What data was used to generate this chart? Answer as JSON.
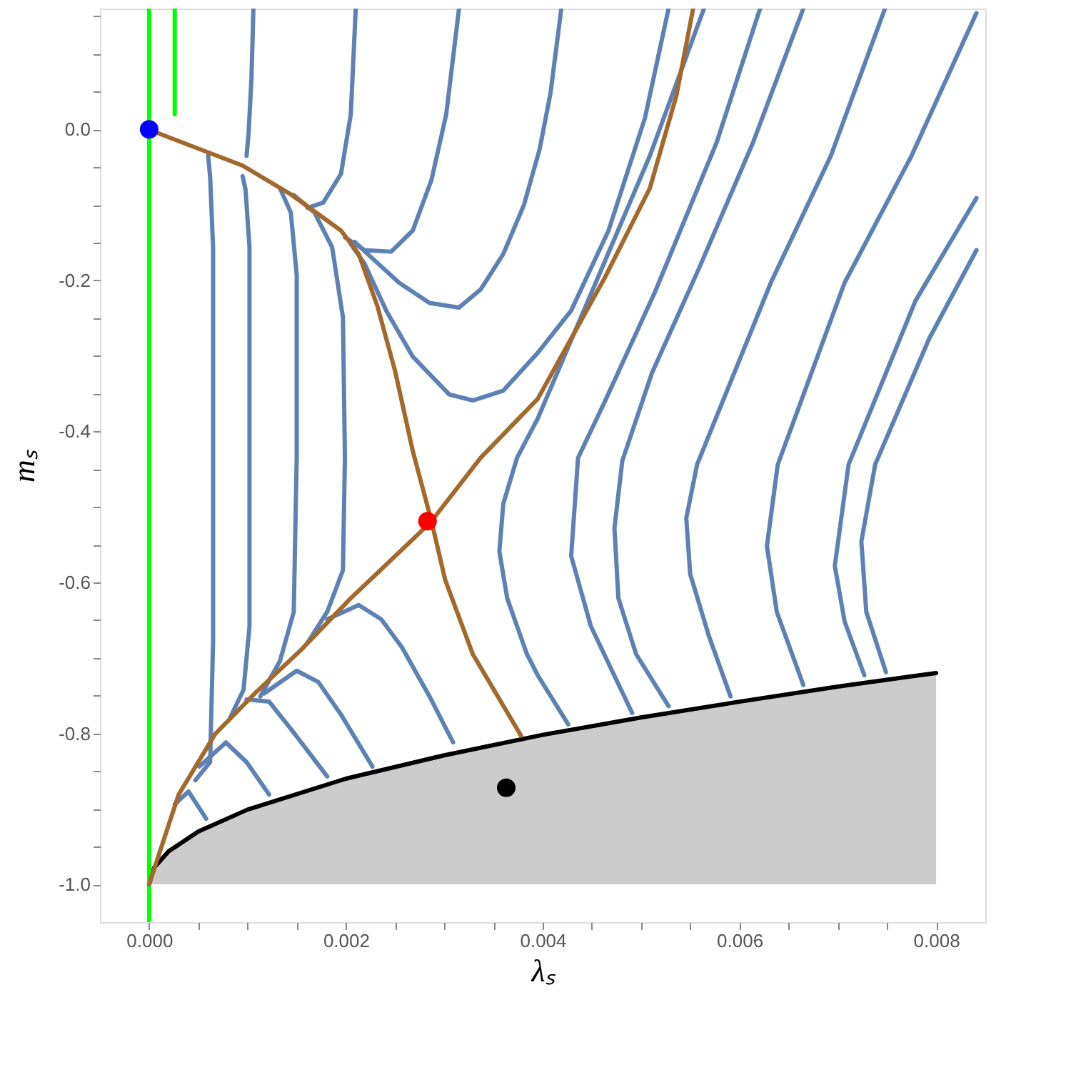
{
  "chart_data": {
    "type": "line",
    "xlabel": "λₛ",
    "ylabel": "mₛ",
    "xlim": [
      -0.0005,
      0.0085
    ],
    "ylim": [
      -1.05,
      0.16
    ],
    "xticks": [
      {
        "value": 0,
        "label": "0.000"
      },
      {
        "value": 0.0005,
        "label": null
      },
      {
        "value": 0.001,
        "label": null
      },
      {
        "value": 0.0015,
        "label": null
      },
      {
        "value": 0.002,
        "label": "0.002"
      },
      {
        "value": 0.0025,
        "label": null
      },
      {
        "value": 0.003,
        "label": null
      },
      {
        "value": 0.0035,
        "label": null
      },
      {
        "value": 0.004,
        "label": "0.004"
      },
      {
        "value": 0.0045,
        "label": null
      },
      {
        "value": 0.005,
        "label": null
      },
      {
        "value": 0.0055,
        "label": null
      },
      {
        "value": 0.006,
        "label": "0.006"
      },
      {
        "value": 0.0065,
        "label": null
      },
      {
        "value": 0.007,
        "label": null
      },
      {
        "value": 0.0075,
        "label": null
      },
      {
        "value": 0.008,
        "label": "0.008"
      }
    ],
    "yticks": [
      {
        "value": -1.0,
        "label": "-1.0"
      },
      {
        "value": -0.95,
        "label": null
      },
      {
        "value": -0.9,
        "label": null
      },
      {
        "value": -0.85,
        "label": null
      },
      {
        "value": -0.8,
        "label": "-0.8"
      },
      {
        "value": -0.75,
        "label": null
      },
      {
        "value": -0.7,
        "label": null
      },
      {
        "value": -0.65,
        "label": null
      },
      {
        "value": -0.6,
        "label": "-0.6"
      },
      {
        "value": -0.55,
        "label": null
      },
      {
        "value": -0.5,
        "label": null
      },
      {
        "value": -0.45,
        "label": null
      },
      {
        "value": -0.4,
        "label": "-0.4"
      },
      {
        "value": -0.35,
        "label": null
      },
      {
        "value": -0.3,
        "label": null
      },
      {
        "value": -0.25,
        "label": null
      },
      {
        "value": -0.2,
        "label": "-0.2"
      },
      {
        "value": -0.15,
        "label": null
      },
      {
        "value": -0.1,
        "label": null
      },
      {
        "value": -0.05,
        "label": null
      },
      {
        "value": 0.0,
        "label": "0.0"
      },
      {
        "value": 0.05,
        "label": null
      },
      {
        "value": 0.1,
        "label": null
      },
      {
        "value": 0.15,
        "label": null
      }
    ],
    "grid": false,
    "line_style": "solid",
    "marker": "none",
    "series": [
      {
        "color": "#000000",
        "x": [
          0,
          5e-05,
          0.0002,
          0.0005,
          0.001,
          0.002,
          0.003,
          0.004,
          0.005,
          0.006,
          0.007,
          0.008
        ],
        "values": [
          -1.0,
          -0.978,
          -0.956,
          -0.93,
          -0.901,
          -0.86,
          -0.829,
          -0.802,
          -0.779,
          -0.758,
          -0.738,
          -0.72
        ],
        "lower": [
          -1.0,
          -1.0,
          -1.0,
          -1.0,
          -1.0,
          -1.0,
          -1.0,
          -1.0,
          -1.0,
          -1.0,
          -1.0,
          -1.0
        ],
        "upper": [
          -1.0,
          -0.978,
          -0.956,
          -0.93,
          -0.901,
          -0.86,
          -0.829,
          -0.802,
          -0.779,
          -0.758,
          -0.738,
          -0.72
        ]
      },
      {
        "color": "#5e81b5",
        "x": [
          0.00106,
          0.00104,
          0.00101,
          0.00099
        ],
        "values": [
          0.16,
          0.067,
          -0.007,
          -0.035
        ]
      },
      {
        "color": "#5e81b5",
        "x": [
          0.0021,
          0.00205,
          0.00195,
          0.00177,
          0.00161
        ],
        "values": [
          0.16,
          0.02,
          -0.059,
          -0.097,
          -0.104
        ]
      },
      {
        "color": "#5e81b5",
        "x": [
          0.00315,
          0.00302,
          0.00287,
          0.00268,
          0.00246,
          0.00219,
          0.00199
        ],
        "values": [
          0.16,
          0.02,
          -0.067,
          -0.134,
          -0.162,
          -0.16,
          -0.143
        ]
      },
      {
        "color": "#5e81b5",
        "x": [
          0.00419,
          0.00408,
          0.00397,
          0.00381,
          0.0036,
          0.00337,
          0.00315,
          0.00285,
          0.00254,
          0.00227,
          0.00209
        ],
        "values": [
          0.16,
          0.048,
          -0.026,
          -0.1,
          -0.165,
          -0.212,
          -0.236,
          -0.23,
          -0.203,
          -0.171,
          -0.149
        ]
      },
      {
        "color": "#5e81b5",
        "x": [
          0.00528,
          0.00504,
          0.00467,
          0.00429,
          0.00395,
          0.0036,
          0.00329,
          0.00305,
          0.00268,
          0.00241,
          0.00219,
          0.00205
        ],
        "values": [
          0.16,
          0.015,
          -0.134,
          -0.24,
          -0.296,
          -0.346,
          -0.359,
          -0.351,
          -0.301,
          -0.24,
          -0.178,
          -0.152
        ]
      },
      {
        "color": "#5e81b5",
        "x": [
          0.00564,
          0.00509,
          0.00454,
          0.00395,
          0.00374,
          0.0036,
          0.00356,
          0.00364,
          0.00384,
          0.00395,
          0.00426
        ],
        "values": [
          0.16,
          -0.035,
          -0.203,
          -0.383,
          -0.435,
          -0.496,
          -0.559,
          -0.621,
          -0.695,
          -0.723,
          -0.788
        ]
      },
      {
        "color": "#5e81b5",
        "x": [
          0.00621,
          0.00577,
          0.00514,
          0.00463,
          0.00436,
          0.00429,
          0.00449,
          0.00491
        ],
        "values": [
          0.16,
          -0.017,
          -0.216,
          -0.361,
          -0.435,
          -0.565,
          -0.658,
          -0.773
        ]
      },
      {
        "color": "#5e81b5",
        "x": [
          0.00665,
          0.00614,
          0.00559,
          0.00511,
          0.00481,
          0.00473,
          0.00477,
          0.00495,
          0.00528
        ],
        "values": [
          0.16,
          -0.017,
          -0.184,
          -0.323,
          -0.439,
          -0.528,
          -0.621,
          -0.695,
          -0.764
        ]
      },
      {
        "color": "#5e81b5",
        "x": [
          0.00748,
          0.00693,
          0.00632,
          0.00557,
          0.00546,
          0.0055,
          0.00569,
          0.00591
        ],
        "values": [
          0.16,
          -0.035,
          -0.203,
          -0.444,
          -0.515,
          -0.589,
          -0.671,
          -0.751
        ]
      },
      {
        "color": "#5e81b5",
        "x": [
          0.00841,
          0.00775,
          0.00707,
          0.00639,
          0.00628,
          0.00638,
          0.00665
        ],
        "values": [
          0.154,
          -0.035,
          -0.203,
          -0.444,
          -0.552,
          -0.639,
          -0.736
        ]
      },
      {
        "color": "#5e81b5",
        "x": [
          0.00841,
          0.00779,
          0.00711,
          0.00697,
          0.00707,
          0.00727
        ],
        "values": [
          -0.091,
          -0.227,
          -0.444,
          -0.578,
          -0.652,
          -0.723
        ]
      },
      {
        "color": "#5e81b5",
        "x": [
          0.00841,
          0.00793,
          0.00738,
          0.00724,
          0.00729,
          0.00749
        ],
        "values": [
          -0.16,
          -0.277,
          -0.444,
          -0.546,
          -0.639,
          -0.719
        ]
      },
      {
        "color": "#5e81b5",
        "x": [
          0.00047,
          0.00062,
          0.00065,
          0.00065,
          0.00065,
          0.00062,
          0.0006
        ],
        "values": [
          -0.862,
          -0.838,
          -0.677,
          -0.435,
          -0.156,
          -0.063,
          -0.035
        ]
      },
      {
        "color": "#5e81b5",
        "x": [
          0.00081,
          0.00096,
          0.00102,
          0.00102,
          0.00102,
          0.00098,
          0.00095
        ],
        "values": [
          -0.783,
          -0.742,
          -0.658,
          -0.435,
          -0.156,
          -0.08,
          -0.062
        ]
      },
      {
        "color": "#5e81b5",
        "x": [
          0.00113,
          0.00133,
          0.00147,
          0.0015,
          0.0015,
          0.00144,
          0.00133
        ],
        "values": [
          -0.751,
          -0.704,
          -0.639,
          -0.435,
          -0.193,
          -0.11,
          -0.078
        ]
      },
      {
        "color": "#5e81b5",
        "x": [
          0.00161,
          0.00181,
          0.00197,
          0.00199,
          0.00197,
          0.00186,
          0.00168,
          0.00147
        ],
        "values": [
          -0.68,
          -0.639,
          -0.584,
          -0.435,
          -0.249,
          -0.156,
          -0.11,
          -0.087
        ]
      },
      {
        "color": "#5e81b5",
        "x": [
          0.00181,
          0.00213,
          0.00236,
          0.00257,
          0.00285,
          0.00309
        ],
        "values": [
          -0.649,
          -0.63,
          -0.649,
          -0.686,
          -0.751,
          -0.812
        ]
      },
      {
        "color": "#5e81b5",
        "x": [
          0.00117,
          0.0015,
          0.00172,
          0.00195,
          0.00227
        ],
        "values": [
          -0.747,
          -0.717,
          -0.732,
          -0.775,
          -0.844
        ]
      },
      {
        "color": "#5e81b5",
        "x": [
          0.00099,
          0.00122,
          0.00144,
          0.00181
        ],
        "values": [
          -0.755,
          -0.758,
          -0.794,
          -0.857
        ]
      },
      {
        "color": "#5e81b5",
        "x": [
          0.00051,
          0.00078,
          0.00099,
          0.00122
        ],
        "values": [
          -0.844,
          -0.812,
          -0.838,
          -0.881
        ]
      },
      {
        "color": "#5e81b5",
        "x": [
          0.00026,
          0.0004,
          0.00058
        ],
        "values": [
          -0.894,
          -0.877,
          -0.913
        ]
      },
      {
        "color": "#00ff00",
        "x": [
          0,
          0
        ],
        "values": [
          0.16,
          -1.05
        ]
      },
      {
        "color": "#00ff00",
        "x": [
          0.00026,
          0.00026
        ],
        "values": [
          0.16,
          0.02
        ]
      },
      {
        "color": "#a3682c",
        "x": [
          0,
          7e-05,
          0.00095,
          0.00144,
          0.00195,
          0.00213,
          0.00232,
          0.0025,
          0.00268,
          0.00287,
          0.00301,
          0.00329,
          0.00378
        ],
        "values": [
          0,
          -0.004,
          -0.048,
          -0.086,
          -0.134,
          -0.165,
          -0.234,
          -0.32,
          -0.426,
          -0.519,
          -0.597,
          -0.695,
          -0.803
        ]
      },
      {
        "color": "#a3682c",
        "x": [
          0,
          5e-05,
          0.0003,
          0.00067,
          0.00109,
          0.00154,
          0.00205,
          0.00268,
          0.00287,
          0.00337,
          0.00395,
          0.00463,
          0.00509,
          0.00536,
          0.00553
        ],
        "values": [
          -1.0,
          -0.98,
          -0.881,
          -0.801,
          -0.745,
          -0.69,
          -0.621,
          -0.543,
          -0.519,
          -0.435,
          -0.357,
          -0.197,
          -0.078,
          0.045,
          0.16
        ]
      },
      {
        "type": "scatter",
        "marker": "circle",
        "color": "#0000ff",
        "x": [
          0
        ],
        "values": [
          0
        ]
      },
      {
        "type": "scatter",
        "marker": "circle",
        "color": "#ff0000",
        "x": [
          0.00283
        ],
        "values": [
          -0.519
        ]
      },
      {
        "type": "scatter",
        "marker": "circle",
        "color": "#000000",
        "x": [
          0.00363
        ],
        "values": [
          -0.872
        ]
      }
    ]
  }
}
